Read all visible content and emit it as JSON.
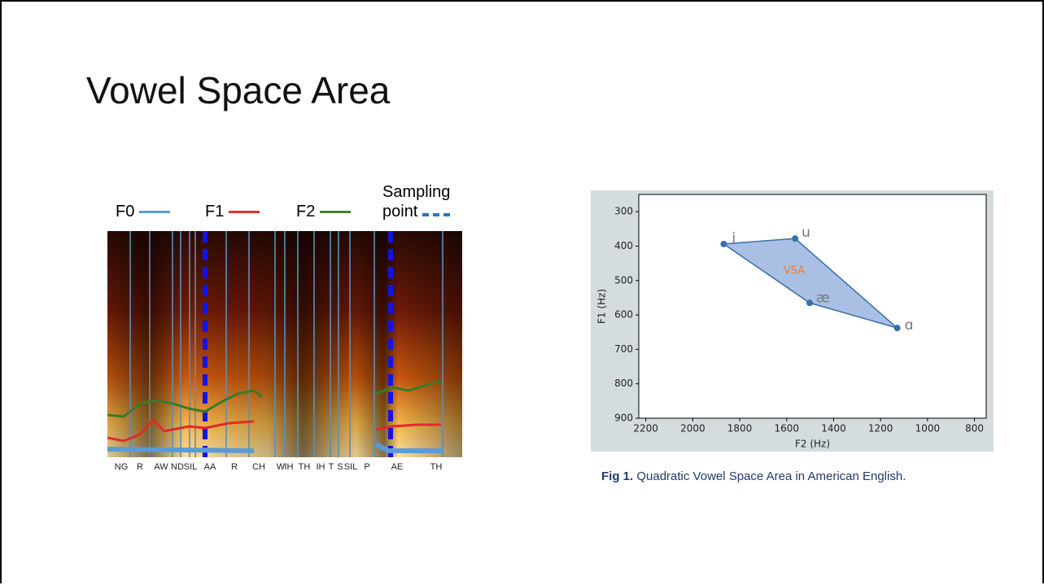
{
  "title": "Vowel Space Area",
  "spectrogram": {
    "legend": [
      {
        "label": "F0",
        "color": "#5b9bd5"
      },
      {
        "label": "F1",
        "color": "#e03030"
      },
      {
        "label": "F2",
        "color": "#4a7d2a"
      },
      {
        "label": "Sampling point",
        "color": "#2e75b6"
      }
    ],
    "phonemes": [
      "NG",
      "R",
      "AW",
      "ND",
      "SIL",
      "AA",
      "R",
      "CH",
      "W",
      "IH",
      "TH",
      "IH",
      "T",
      "S",
      "SIL",
      "P",
      "AE",
      "TH"
    ]
  },
  "chart_data": {
    "type": "scatter",
    "xlabel": "F2 (Hz)",
    "ylabel": "F1 (Hz)",
    "x": [
      1868,
      1564,
      1129,
      1502
    ],
    "values": [
      394,
      378,
      638,
      565
    ],
    "point_labels": [
      "i",
      "u",
      "ɑ",
      "æ"
    ],
    "annotation": "VSA",
    "color": "#3a6ea8",
    "fill": "#a9c0e4",
    "annotation_color": "#f07a28",
    "xlim": [
      2230,
      750
    ],
    "ylim": [
      900,
      250
    ],
    "xticks": [
      2200,
      2000,
      1800,
      1600,
      1400,
      1200,
      1000,
      800
    ],
    "yticks": [
      300,
      400,
      500,
      600,
      700,
      800,
      900
    ]
  },
  "caption": {
    "label": "Fig 1.",
    "text": "Quadratic Vowel Space Area in American English."
  }
}
